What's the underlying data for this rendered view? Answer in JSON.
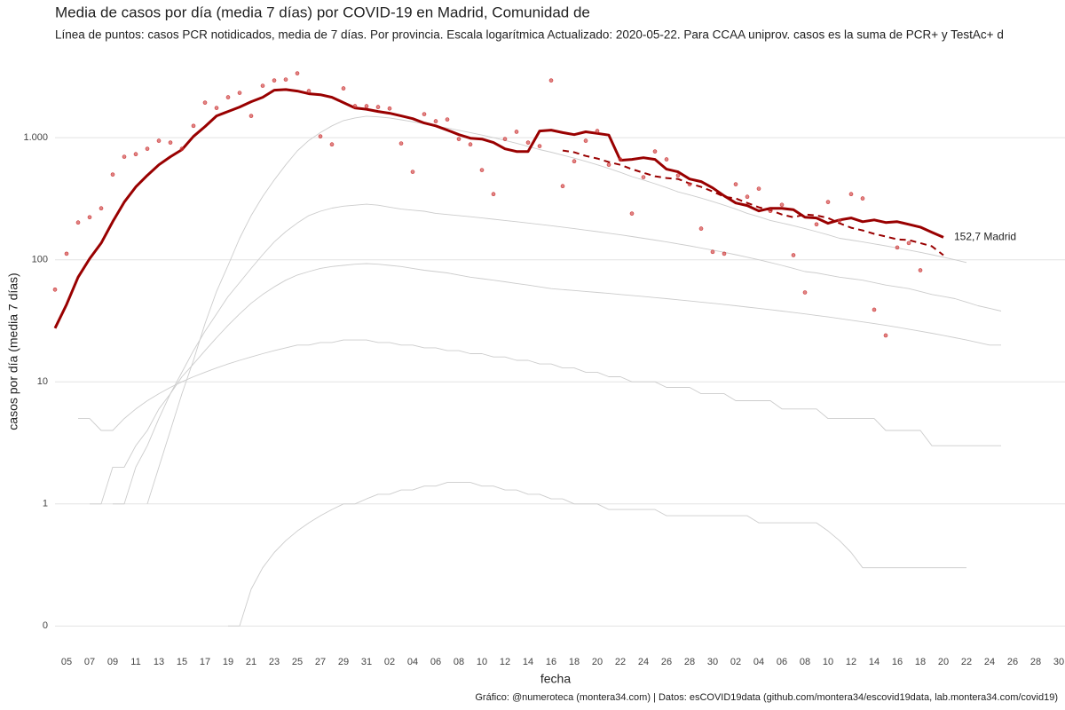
{
  "chart_data": {
    "type": "line",
    "title": "Media de casos por día (media 7 días) por COVID-19 en Madrid, Comunidad de",
    "subtitle": "Línea de puntos: casos PCR notidicados, media de 7 días. Por provincia. Escala logarítmica  Actualizado: 2020-05-22. Para CCAA uniprov. casos es la suma de PCR+ y TestAc+ d",
    "x_label": "fecha",
    "y_label": "casos por día (media 7 días)",
    "caption": "Gráfico: @numeroteca (montera34.com) | Datos: esCOVID19data (github.com/montera34/escovid19data, lab.montera34.com/covid19)",
    "log_y": true,
    "grid": true,
    "ylim": [
      0.064,
      5000
    ],
    "yticks": [
      {
        "value": 0.1,
        "label": "0"
      },
      1,
      10,
      100,
      {
        "value": 1000,
        "label": "1.000"
      }
    ],
    "categories": [
      null,
      "05",
      null,
      "07",
      null,
      "09",
      null,
      "11",
      null,
      "13",
      null,
      "15",
      null,
      "17",
      null,
      "19",
      null,
      "21",
      null,
      "23",
      null,
      "25",
      null,
      "27",
      null,
      "29",
      null,
      "31",
      null,
      "02",
      null,
      "04",
      null,
      "06",
      null,
      "08",
      null,
      "10",
      null,
      "12",
      null,
      "14",
      null,
      "16",
      null,
      "18",
      null,
      "20",
      null,
      "22",
      null,
      "24",
      null,
      "26",
      null,
      "28",
      null,
      "30",
      null,
      "02",
      null,
      "04",
      null,
      "06",
      null,
      "08",
      null,
      "10",
      null,
      "12",
      null,
      "14",
      null,
      "16",
      null,
      "18",
      null,
      "20",
      null,
      "22",
      null,
      "24",
      null,
      "26",
      null,
      "28",
      null,
      "30"
    ],
    "series": [
      {
        "color": "#cccccc",
        "style": "line",
        "values": [
          null,
          null,
          null,
          null,
          null,
          null,
          null,
          null,
          1,
          2,
          4,
          8,
          15,
          30,
          55,
          90,
          150,
          230,
          330,
          450,
          600,
          780,
          950,
          1100,
          1250,
          1380,
          1450,
          1500,
          1480,
          1450,
          1400,
          1350,
          1300,
          1250,
          1200,
          1150,
          1100,
          1050,
          1000,
          950,
          900,
          850,
          800,
          760,
          720,
          680,
          640,
          600,
          560,
          520,
          480,
          450,
          420,
          390,
          360,
          340,
          320,
          300,
          280,
          260,
          240,
          225,
          210,
          200,
          190,
          180,
          170,
          160,
          150,
          145,
          140,
          135,
          130,
          125,
          120,
          115,
          110,
          105,
          100,
          95,
          null,
          null,
          null,
          null,
          null,
          null,
          null,
          null
        ]
      },
      {
        "color": "#cccccc",
        "style": "line",
        "values": [
          null,
          null,
          null,
          null,
          null,
          1,
          1,
          2,
          3,
          5,
          8,
          12,
          18,
          26,
          36,
          50,
          65,
          85,
          110,
          140,
          170,
          200,
          230,
          250,
          265,
          275,
          280,
          285,
          280,
          270,
          260,
          255,
          250,
          240,
          235,
          230,
          225,
          220,
          215,
          210,
          205,
          200,
          195,
          190,
          185,
          180,
          175,
          170,
          165,
          160,
          155,
          150,
          145,
          140,
          135,
          130,
          125,
          120,
          115,
          110,
          105,
          100,
          95,
          90,
          85,
          80,
          78,
          75,
          72,
          70,
          68,
          65,
          62,
          60,
          58,
          55,
          52,
          50,
          48,
          45,
          42,
          40,
          38,
          null,
          null,
          null,
          null,
          null
        ]
      },
      {
        "color": "#cccccc",
        "style": "line",
        "values": [
          null,
          null,
          null,
          1,
          1,
          2,
          2,
          3,
          4,
          6,
          8,
          11,
          14,
          18,
          23,
          29,
          36,
          44,
          52,
          60,
          68,
          75,
          80,
          85,
          88,
          90,
          92,
          93,
          92,
          90,
          88,
          85,
          82,
          80,
          78,
          75,
          72,
          70,
          68,
          66,
          64,
          62,
          60,
          58,
          57,
          56,
          55,
          54,
          53,
          52,
          51,
          50,
          49,
          48,
          47,
          46,
          45,
          44,
          43,
          42,
          41,
          40,
          39,
          38,
          37,
          36,
          35,
          34,
          33,
          32,
          31,
          30,
          29,
          28,
          27,
          26,
          25,
          24,
          23,
          22,
          21,
          20,
          20,
          null,
          null,
          null,
          null,
          null
        ]
      },
      {
        "color": "#cccccc",
        "style": "line",
        "values": [
          null,
          null,
          5,
          5,
          4,
          4,
          5,
          6,
          7,
          8,
          9,
          10,
          11,
          12,
          13,
          14,
          15,
          16,
          17,
          18,
          19,
          20,
          20,
          21,
          21,
          22,
          22,
          22,
          21,
          21,
          20,
          20,
          19,
          19,
          18,
          18,
          17,
          17,
          16,
          16,
          15,
          15,
          14,
          14,
          13,
          13,
          12,
          12,
          11,
          11,
          10,
          10,
          10,
          9,
          9,
          9,
          8,
          8,
          8,
          7,
          7,
          7,
          7,
          6,
          6,
          6,
          6,
          5,
          5,
          5,
          5,
          5,
          4,
          4,
          4,
          4,
          3,
          3,
          3,
          3,
          3,
          3,
          3,
          null,
          null,
          null,
          null,
          null
        ]
      },
      {
        "color": "#cccccc",
        "style": "line",
        "values": [
          null,
          null,
          null,
          null,
          null,
          null,
          null,
          null,
          null,
          null,
          null,
          null,
          null,
          null,
          null,
          0.1,
          0.1,
          0.2,
          0.3,
          0.4,
          0.5,
          0.6,
          0.7,
          0.8,
          0.9,
          1,
          1,
          1.1,
          1.2,
          1.2,
          1.3,
          1.3,
          1.4,
          1.4,
          1.5,
          1.5,
          1.5,
          1.4,
          1.4,
          1.3,
          1.3,
          1.2,
          1.2,
          1.1,
          1.1,
          1,
          1,
          1,
          0.9,
          0.9,
          0.9,
          0.9,
          0.9,
          0.8,
          0.8,
          0.8,
          0.8,
          0.8,
          0.8,
          0.8,
          0.8,
          0.7,
          0.7,
          0.7,
          0.7,
          0.7,
          0.7,
          0.6,
          0.5,
          0.4,
          0.3,
          0.3,
          0.3,
          0.3,
          0.3,
          0.3,
          0.3,
          0.3,
          0.3,
          0.3,
          null,
          null,
          null,
          null,
          null,
          null,
          null,
          null
        ]
      },
      {
        "color": "#990000",
        "style": "line",
        "width": 3,
        "values": [
          27.5,
          43,
          72,
          102,
          137,
          205,
          297,
          395,
          491,
          600,
          698,
          798,
          1025,
          1233,
          1507,
          1640,
          1783,
          1971,
          2143,
          2450,
          2480,
          2410,
          2290,
          2250,
          2143,
          1937,
          1752,
          1710,
          1640,
          1585,
          1507,
          1433,
          1318,
          1250,
          1153,
          1060,
          991,
          975,
          912,
          811,
          771,
          771,
          1135,
          1153,
          1100,
          1060,
          1118,
          1085,
          1050,
          653,
          664,
          686,
          664,
          552,
          525,
          459,
          437,
          388,
          334,
          292,
          278,
          251,
          264,
          264,
          257,
          223,
          220,
          199,
          212,
          220,
          205,
          212,
          202,
          205,
          195,
          185,
          168,
          152.7,
          null,
          null,
          null,
          null,
          null,
          null,
          null,
          null,
          null,
          null
        ],
        "value_labels": [
          null,
          null,
          null,
          null,
          null,
          null,
          null,
          null,
          null,
          null,
          null,
          null,
          null,
          null,
          null,
          null,
          null,
          null,
          null,
          null,
          null,
          null,
          null,
          null,
          null,
          null,
          null,
          null,
          null,
          null,
          null,
          null,
          null,
          null,
          null,
          null,
          null,
          null,
          null,
          null,
          null,
          null,
          null,
          null,
          null,
          null,
          null,
          null,
          null,
          null,
          null,
          null,
          null,
          null,
          null,
          null,
          null,
          null,
          null,
          null,
          null,
          null,
          null,
          null,
          null,
          null,
          null,
          null,
          null,
          null,
          null,
          null,
          null,
          null,
          null,
          null,
          null,
          "152,7 Madrid",
          null,
          null,
          null,
          null,
          null,
          null,
          null,
          null,
          null,
          null
        ]
      },
      {
        "color": "#990000",
        "style": "dashed",
        "width": 2,
        "values": [
          null,
          null,
          null,
          null,
          null,
          null,
          null,
          null,
          null,
          null,
          null,
          null,
          null,
          null,
          null,
          null,
          null,
          null,
          null,
          null,
          null,
          null,
          null,
          null,
          null,
          null,
          null,
          null,
          null,
          null,
          null,
          null,
          null,
          null,
          null,
          null,
          null,
          null,
          null,
          null,
          null,
          null,
          null,
          null,
          785,
          759,
          709,
          675,
          631,
          600,
          552,
          516,
          483,
          467,
          459,
          422,
          395,
          363,
          328,
          318,
          292,
          269,
          255,
          235,
          223,
          235,
          231,
          220,
          199,
          183,
          174,
          163,
          155,
          147,
          145,
          137,
          129,
          109,
          null,
          null,
          null,
          null,
          null,
          null,
          null,
          null,
          null,
          null
        ]
      },
      {
        "color": "#cc3333",
        "style": "points",
        "values": [
          57,
          112,
          202,
          223,
          264,
          499,
          698,
          733,
          811,
          944,
          912,
          811,
          1250,
          1937,
          1752,
          2143,
          2330,
          1507,
          2663,
          2944,
          2995,
          3365,
          2410,
          1025,
          881,
          2535,
          1813,
          1813,
          1783,
          1735,
          897,
          525,
          1559,
          1364,
          1410,
          975,
          881,
          543,
          345,
          975,
          1118,
          912,
          853,
          2944,
          401,
          641,
          944,
          1135,
          600,
          664,
          239,
          475,
          771,
          664,
          491,
          415,
          180,
          116,
          112,
          415,
          328,
          382,
          251,
          282,
          109,
          54,
          195,
          297,
          209,
          345,
          318,
          39,
          24,
          126,
          137,
          82,
          null,
          null,
          null,
          null,
          null,
          null,
          null,
          null,
          null,
          null,
          null,
          null
        ]
      }
    ]
  }
}
